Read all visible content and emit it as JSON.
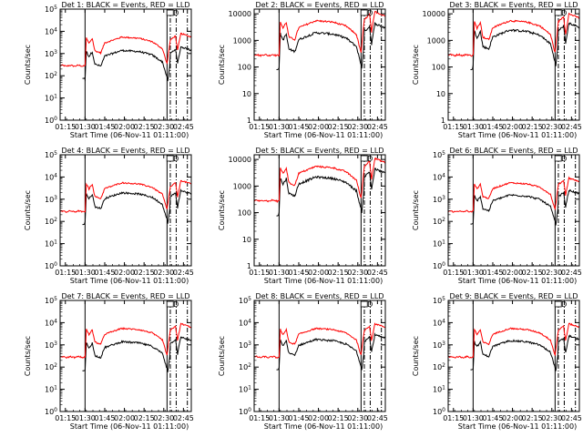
{
  "chart_data": {
    "type": "line",
    "ylabel": "Counts/sec",
    "xlabel": "Start Time (06-Nov-11 01:11:00)",
    "x_ticks": [
      "01:15",
      "01:30",
      "01:45",
      "02:00",
      "02:15",
      "02:30",
      "02:45"
    ],
    "x_tick_minutes": [
      4,
      19,
      34,
      49,
      64,
      79,
      94
    ],
    "xlim_minutes": [
      0,
      100
    ],
    "line_colors": {
      "events": "#000000",
      "lld": "#ff0000"
    },
    "vlines_minutes": {
      "solid": [
        19,
        81.5
      ],
      "dashdot": [
        84,
        88.5,
        97
      ]
    },
    "marker_label": "D",
    "panels": [
      {
        "title": "Det 1: BLACK = Events, RED = LLD",
        "ylim": [
          1,
          100000
        ],
        "yformat": "power",
        "y_ticks": [
          "10^0",
          "10^1",
          "10^2",
          "10^3",
          "10^4",
          "10^5"
        ],
        "black_offset": 0.6,
        "break_offset": 0.2,
        "late_peak": 8000
      },
      {
        "title": "Det 2: BLACK = Events, RED = LLD",
        "ylim": [
          1,
          15000
        ],
        "yformat": "plain",
        "y_ticks": [
          "1",
          "10",
          "100",
          "1000",
          "10000"
        ],
        "black_offset": 0.45,
        "break_offset": 0.18,
        "late_peak": 12000
      },
      {
        "title": "Det 3: BLACK = Events, RED = LLD",
        "ylim": [
          1,
          15000
        ],
        "yformat": "plain",
        "y_ticks": [
          "1",
          "10",
          "100",
          "1000",
          "10000"
        ],
        "black_offset": 0.35,
        "break_offset": 0.18,
        "late_peak": 10000
      },
      {
        "title": "Det 4: BLACK = Events, RED = LLD",
        "ylim": [
          1,
          100000
        ],
        "yformat": "power",
        "y_ticks": [
          "10^0",
          "10^1",
          "10^2",
          "10^3",
          "10^4",
          "10^5"
        ],
        "black_offset": 0.45,
        "break_offset": 0.22,
        "late_peak": 7000
      },
      {
        "title": "Det 5: BLACK = Events, RED = LLD",
        "ylim": [
          1,
          15000
        ],
        "yformat": "plain",
        "y_ticks": [
          "1",
          "10",
          "100",
          "1000",
          "10000"
        ],
        "black_offset": 0.4,
        "break_offset": 0.2,
        "late_peak": 11000
      },
      {
        "title": "Det 6: BLACK = Events, RED = LLD",
        "ylim": [
          1,
          100000
        ],
        "yformat": "power",
        "y_ticks": [
          "10^0",
          "10^1",
          "10^2",
          "10^3",
          "10^4",
          "10^5"
        ],
        "black_offset": 0.55,
        "break_offset": 0.2,
        "late_peak": 9000
      },
      {
        "title": "Det 7: BLACK = Events, RED = LLD",
        "ylim": [
          1,
          100000
        ],
        "yformat": "power",
        "y_ticks": [
          "10^0",
          "10^1",
          "10^2",
          "10^3",
          "10^4",
          "10^5"
        ],
        "black_offset": 0.6,
        "break_offset": 0.25,
        "late_peak": 9000
      },
      {
        "title": "Det 8: BLACK = Events, RED = LLD",
        "ylim": [
          1,
          100000
        ],
        "yformat": "power",
        "y_ticks": [
          "10^0",
          "10^1",
          "10^2",
          "10^3",
          "10^4",
          "10^5"
        ],
        "black_offset": 0.5,
        "break_offset": 0.2,
        "late_peak": 9000
      },
      {
        "title": "Det 9: BLACK = Events, RED = LLD",
        "ylim": [
          1,
          100000
        ],
        "yformat": "power",
        "y_ticks": [
          "10^0",
          "10^1",
          "10^2",
          "10^3",
          "10^4",
          "10^5"
        ],
        "black_offset": 0.55,
        "break_offset": 0.2,
        "late_peak": 9000
      }
    ]
  }
}
